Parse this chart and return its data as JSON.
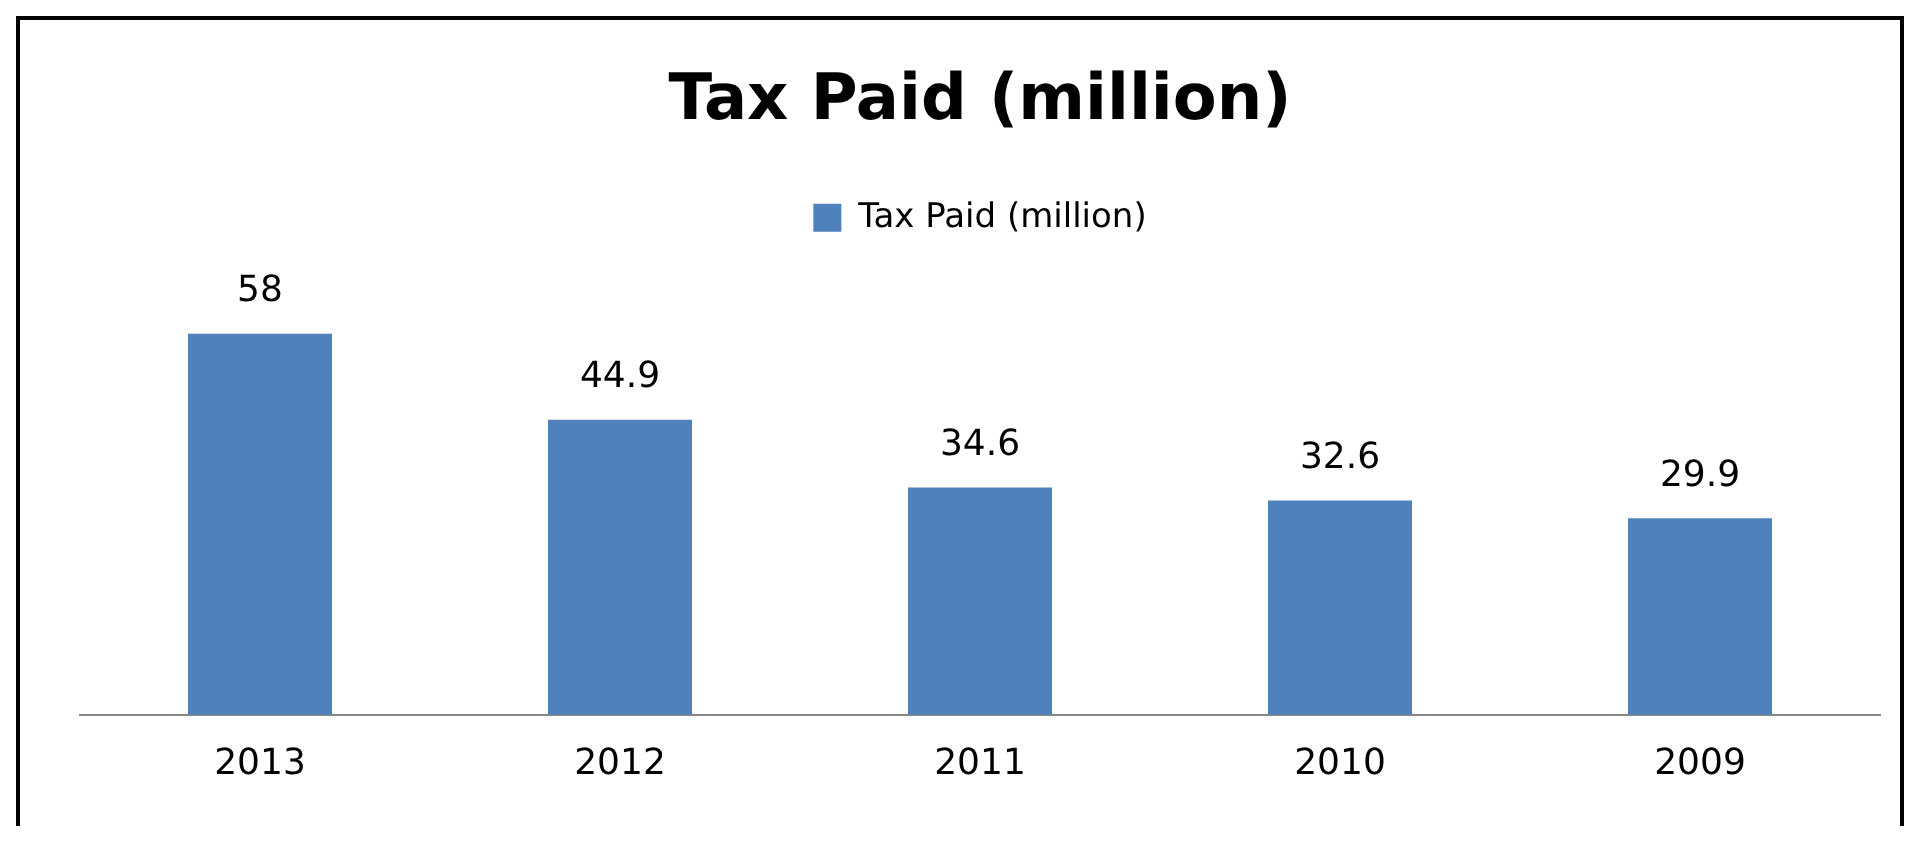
{
  "chart_data": {
    "type": "bar",
    "title": "Tax Paid (million)",
    "categories": [
      "2013",
      "2012",
      "2011",
      "2010",
      "2009"
    ],
    "series": [
      {
        "name": "Tax Paid (million)",
        "color": "#4f81bd",
        "values": [
          58,
          44.9,
          34.6,
          32.6,
          29.9
        ]
      }
    ],
    "data_labels": true,
    "legend": "top",
    "grid": false
  }
}
